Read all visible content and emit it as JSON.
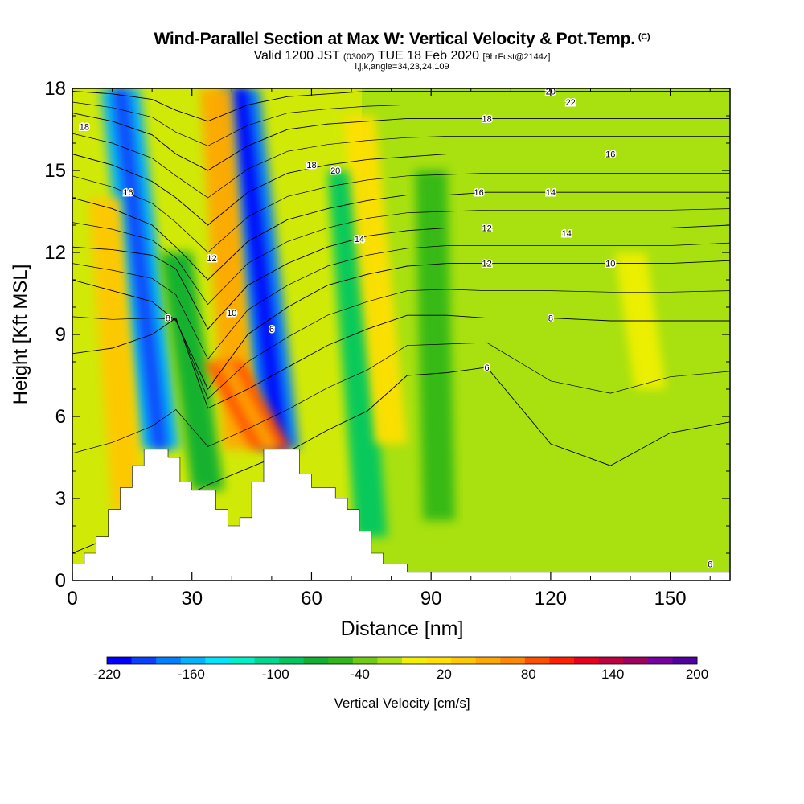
{
  "title": {
    "main": "Wind-Parallel Section at Max W: Vertical Velocity & Pot.Temp.",
    "copyright": "(C)",
    "valid_prefix": "Valid 1200 JST",
    "utc": "(0300Z)",
    "valid_date": "TUE 18 Feb 2020",
    "forecast": "[9hrFcst@2144z]",
    "params": "i,j,k,angle=34,23,24,109"
  },
  "chart_data": {
    "type": "heatmap",
    "xlabel": "Distance [nm]",
    "ylabel": "Height [Kft MSL]",
    "xlim": [
      0,
      165
    ],
    "ylim": [
      0,
      18
    ],
    "x_ticks": [
      0,
      30,
      60,
      90,
      120,
      150
    ],
    "y_ticks": [
      0,
      3,
      6,
      9,
      12,
      15,
      18
    ],
    "x_tick_labels": [
      "0",
      "30",
      "60",
      "90",
      "120",
      "150"
    ],
    "y_tick_labels": [
      "0",
      "3",
      "6",
      "9",
      "12",
      "15",
      "18"
    ],
    "colorbar": {
      "label": "Vertical Velocity [cm/s]",
      "min": -220,
      "max": 200,
      "step": 20,
      "tick_labels": [
        "-220",
        "-160",
        "-100",
        "-40",
        "20",
        "80",
        "140",
        "200"
      ],
      "tick_values": [
        -220,
        -160,
        -100,
        -40,
        20,
        80,
        140,
        200
      ],
      "colors": [
        "#0000ff",
        "#0a40ff",
        "#0080ff",
        "#00b4ff",
        "#00e6ff",
        "#00f0c8",
        "#00d890",
        "#00c860",
        "#10b030",
        "#30b818",
        "#70cc10",
        "#a8e010",
        "#f0f000",
        "#ffe000",
        "#ffc800",
        "#ffa800",
        "#ff8800",
        "#ff5000",
        "#ff2000",
        "#e80020",
        "#c00040",
        "#a00060",
        "#7800a0",
        "#5000a0"
      ]
    },
    "terrain": [
      [
        0,
        0.6
      ],
      [
        3,
        0.6
      ],
      [
        3,
        1.0
      ],
      [
        6,
        1.0
      ],
      [
        6,
        1.6
      ],
      [
        9,
        1.6
      ],
      [
        9,
        2.6
      ],
      [
        12,
        2.6
      ],
      [
        12,
        3.4
      ],
      [
        15,
        3.4
      ],
      [
        15,
        4.2
      ],
      [
        18,
        4.2
      ],
      [
        18,
        4.8
      ],
      [
        24,
        4.8
      ],
      [
        24,
        4.5
      ],
      [
        27,
        4.5
      ],
      [
        27,
        3.6
      ],
      [
        30,
        3.6
      ],
      [
        30,
        3.3
      ],
      [
        36,
        3.3
      ],
      [
        36,
        2.6
      ],
      [
        39,
        2.6
      ],
      [
        39,
        2.0
      ],
      [
        42,
        2.0
      ],
      [
        42,
        2.3
      ],
      [
        45,
        2.3
      ],
      [
        45,
        3.6
      ],
      [
        48,
        3.6
      ],
      [
        48,
        4.8
      ],
      [
        57,
        4.8
      ],
      [
        57,
        3.9
      ],
      [
        60,
        3.9
      ],
      [
        60,
        3.4
      ],
      [
        66,
        3.4
      ],
      [
        66,
        3.0
      ],
      [
        69,
        3.0
      ],
      [
        69,
        2.6
      ],
      [
        72,
        2.6
      ],
      [
        72,
        1.8
      ],
      [
        75,
        1.8
      ],
      [
        75,
        1.0
      ],
      [
        78,
        1.0
      ],
      [
        78,
        0.6
      ],
      [
        84,
        0.6
      ],
      [
        84,
        0.3
      ],
      [
        165,
        0.3
      ]
    ],
    "velocity_bands": [
      {
        "x_bottom": 22,
        "x_top": 12,
        "y_bottom": 4.8,
        "y_top": 18,
        "value": -150
      },
      {
        "x_bottom": 52,
        "x_top": 42,
        "y_bottom": 4.8,
        "y_top": 18,
        "value": -170
      },
      {
        "x_bottom": 34,
        "x_top": 26,
        "y_bottom": 3.3,
        "y_top": 12,
        "value": -60
      },
      {
        "x_bottom": 75,
        "x_top": 68,
        "y_bottom": 1.6,
        "y_top": 15,
        "value": -80
      },
      {
        "x_bottom": 92,
        "x_top": 90,
        "y_bottom": 2.2,
        "y_top": 15,
        "value": -40
      },
      {
        "x_bottom": 42,
        "x_top": 36,
        "y_bottom": 4.8,
        "y_top": 18,
        "value": 90
      },
      {
        "x_bottom": 50,
        "x_top": 38,
        "y_bottom": 4.8,
        "y_top": 8,
        "value": 120
      },
      {
        "x_bottom": 80,
        "x_top": 72,
        "y_bottom": 5,
        "y_top": 17,
        "value": 50
      },
      {
        "x_bottom": 14,
        "x_top": 8,
        "y_bottom": 2.5,
        "y_top": 14,
        "value": 60
      },
      {
        "x_bottom": 145,
        "x_top": 140,
        "y_bottom": 7,
        "y_top": 12,
        "value": 30
      }
    ],
    "theta_contours": [
      {
        "label": "6",
        "y": [
          1.0,
          1.6,
          2.3,
          2.9,
          3.5,
          4.1,
          4.7,
          5.5,
          6.2,
          7.5,
          7.6,
          7.8,
          5.0,
          4.2,
          5.4,
          5.8
        ]
      },
      {
        "label": "8",
        "y": [
          8.3,
          8.5,
          9.0,
          9.6,
          6.3,
          7.0,
          7.8,
          8.6,
          9.2,
          9.7,
          9.7,
          9.6,
          9.6,
          9.5,
          9.5,
          9.5
        ]
      },
      {
        "label": "10",
        "y": [
          11.0,
          10.6,
          10.2,
          9.5,
          7.0,
          9.0,
          10.0,
          10.8,
          11.2,
          11.5,
          11.6,
          11.6,
          11.6,
          11.6,
          11.6,
          11.7
        ]
      },
      {
        "label": "12",
        "y": [
          12.2,
          12.1,
          11.9,
          11.4,
          9.2,
          10.8,
          11.6,
          12.2,
          12.6,
          12.8,
          12.9,
          12.9,
          12.9,
          12.9,
          12.9,
          13.0
        ]
      },
      {
        "label": "14",
        "y": [
          14.0,
          13.6,
          13.0,
          12.2,
          11.0,
          12.4,
          13.2,
          13.6,
          13.9,
          14.1,
          14.1,
          14.2,
          14.2,
          14.2,
          14.2,
          14.2
        ]
      },
      {
        "label": "16",
        "y": [
          15.6,
          15.2,
          14.6,
          14.0,
          13.0,
          14.2,
          14.9,
          15.2,
          15.4,
          15.5,
          15.6,
          15.6,
          15.6,
          15.6,
          15.6,
          15.6
        ]
      },
      {
        "label": "18",
        "y": [
          17.1,
          16.8,
          16.3,
          15.6,
          15.0,
          15.9,
          16.5,
          16.7,
          16.8,
          16.9,
          16.9,
          16.9,
          16.9,
          16.9,
          16.9,
          16.9
        ]
      },
      {
        "label": "20",
        "y": [
          17.9,
          17.8,
          17.6,
          17.2,
          16.8,
          17.4,
          17.7,
          17.8,
          17.9,
          17.9,
          17.9,
          17.9,
          17.9,
          17.9,
          17.9,
          17.9
        ]
      }
    ],
    "contour_x": [
      0,
      10,
      20,
      26,
      34,
      44,
      54,
      64,
      74,
      84,
      94,
      104,
      120,
      135,
      150,
      165
    ],
    "extra_labels": [
      "22",
      "14",
      "12",
      "18",
      "16",
      "20",
      "18",
      "16",
      "10",
      "12",
      "14",
      "6",
      "8",
      "6"
    ]
  }
}
